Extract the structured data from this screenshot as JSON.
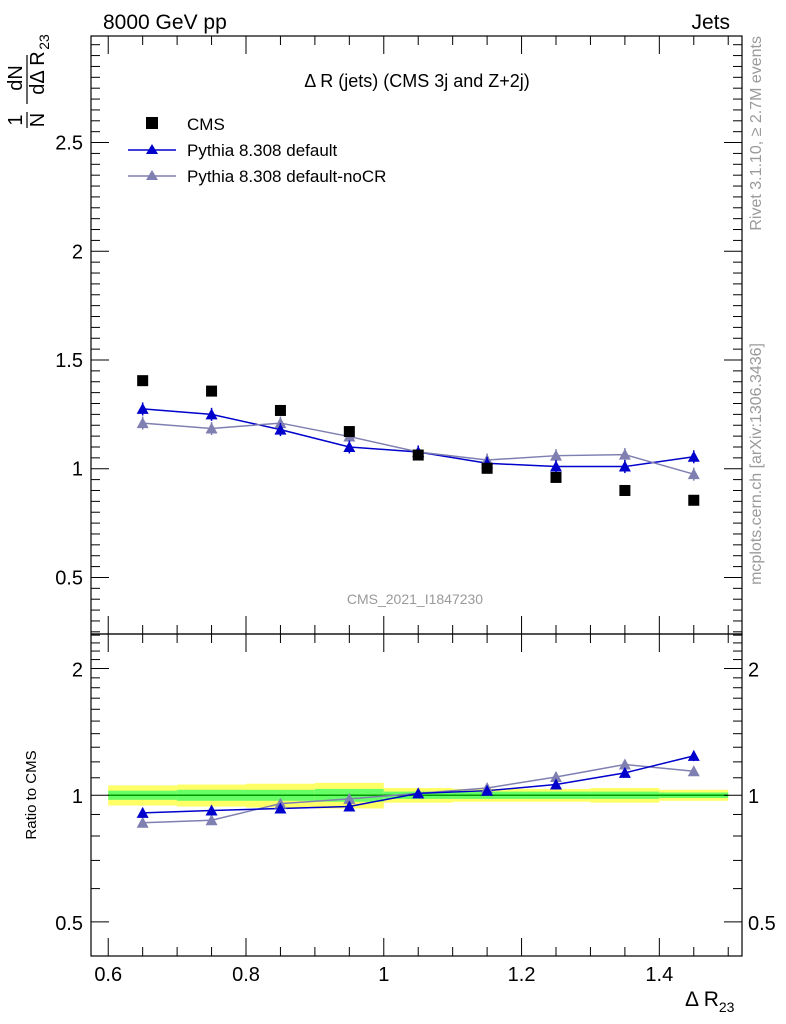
{
  "header": {
    "left": "8000 GeV pp",
    "right": "Jets"
  },
  "side_labels": {
    "rivet": "Rivet 3.1.10, ≥ 2.7M events",
    "mcplots": "mcplots.cern.ch [arXiv:1306.3436]"
  },
  "colors": {
    "cms": "#000000",
    "default": "#0000cc",
    "nocr": "#7f7fb2",
    "band_outer": "#ffff66",
    "band_inner": "#66ff66",
    "ratio_line": "#009900",
    "watermark": "#9a9a9a"
  },
  "chart_data": [
    {
      "type": "scatter",
      "title": "Δ R (jets) (CMS 3j and Z+2j)",
      "watermark": "CMS_2021_I1847230",
      "ylabel": {
        "frac_num": "1",
        "frac_den": "N",
        "d_num": "dN",
        "d_den": "dΔ R",
        "sub": "23"
      },
      "xlim": [
        0.575,
        1.52
      ],
      "ylim": [
        0.24,
        2.99
      ],
      "yticks": [
        0.5,
        1,
        1.5,
        2,
        2.5
      ],
      "ytick_labels": [
        "0.5",
        "1",
        "1.5",
        "2",
        "2.5"
      ],
      "legend_position": "top-left",
      "series": [
        {
          "name": "CMS",
          "marker": "square",
          "x": [
            0.65,
            0.75,
            0.85,
            0.95,
            1.05,
            1.15,
            1.25,
            1.35,
            1.45
          ],
          "y": [
            1.405,
            1.357,
            1.268,
            1.171,
            1.063,
            1.002,
            0.96,
            0.9,
            0.855
          ]
        },
        {
          "name": "Pythia 8.308 default",
          "marker": "triangle",
          "x": [
            0.65,
            0.75,
            0.85,
            0.95,
            1.05,
            1.15,
            1.25,
            1.35,
            1.45
          ],
          "y": [
            1.275,
            1.25,
            1.18,
            1.1,
            1.077,
            1.025,
            1.01,
            1.01,
            1.055
          ],
          "err": [
            0.03,
            0.03,
            0.03,
            0.03,
            0.03,
            0.03,
            0.03,
            0.03,
            0.03
          ]
        },
        {
          "name": "Pythia 8.308 default-noCR",
          "marker": "triangle",
          "x": [
            0.65,
            0.75,
            0.85,
            0.95,
            1.05,
            1.15,
            1.25,
            1.35,
            1.45
          ],
          "y": [
            1.21,
            1.185,
            1.21,
            1.148,
            1.077,
            1.04,
            1.06,
            1.065,
            0.975
          ],
          "err": [
            0.03,
            0.03,
            0.03,
            0.03,
            0.03,
            0.03,
            0.03,
            0.03,
            0.03
          ]
        }
      ]
    },
    {
      "type": "scatter",
      "ylabel": "Ratio to CMS",
      "xlabel_base": "Δ R",
      "xlabel_sub": "23",
      "xlim": [
        0.575,
        1.52
      ],
      "ylim": [
        0.415,
        2.415
      ],
      "log_y": true,
      "xticks": [
        0.6,
        0.8,
        1,
        1.2,
        1.4
      ],
      "xtick_labels": [
        "0.6",
        "0.8",
        "1",
        "1.2",
        "1.4"
      ],
      "yticks": [
        0.5,
        1,
        2
      ],
      "ytick_labels": [
        "0.5",
        "1",
        "2"
      ],
      "bands": {
        "x_edges": [
          0.6,
          0.7,
          0.8,
          0.9,
          1.0,
          1.1,
          1.2,
          1.3,
          1.4,
          1.5
        ],
        "outer": [
          0.055,
          0.06,
          0.065,
          0.07,
          0.04,
          0.035,
          0.035,
          0.04,
          0.03
        ],
        "inner": [
          0.025,
          0.03,
          0.03,
          0.035,
          0.02,
          0.02,
          0.02,
          0.02,
          0.015
        ]
      },
      "series": [
        {
          "name": "Pythia 8.308 default",
          "x": [
            0.65,
            0.75,
            0.85,
            0.95,
            1.05,
            1.15,
            1.25,
            1.35,
            1.45
          ],
          "y": [
            0.908,
            0.92,
            0.93,
            0.94,
            1.01,
            1.025,
            1.06,
            1.13,
            1.24
          ],
          "err": [
            0.025,
            0.025,
            0.02,
            0.02,
            0.02,
            0.025,
            0.025,
            0.025,
            0.035
          ]
        },
        {
          "name": "Pythia 8.308 default-noCR",
          "x": [
            0.65,
            0.75,
            0.85,
            0.95,
            1.05,
            1.15,
            1.25,
            1.35,
            1.45
          ],
          "y": [
            0.86,
            0.872,
            0.955,
            0.98,
            1.01,
            1.04,
            1.105,
            1.183,
            1.14
          ],
          "err": [
            0.02,
            0.02,
            0.02,
            0.02,
            0.02,
            0.025,
            0.03,
            0.03,
            0.03
          ]
        }
      ]
    }
  ]
}
